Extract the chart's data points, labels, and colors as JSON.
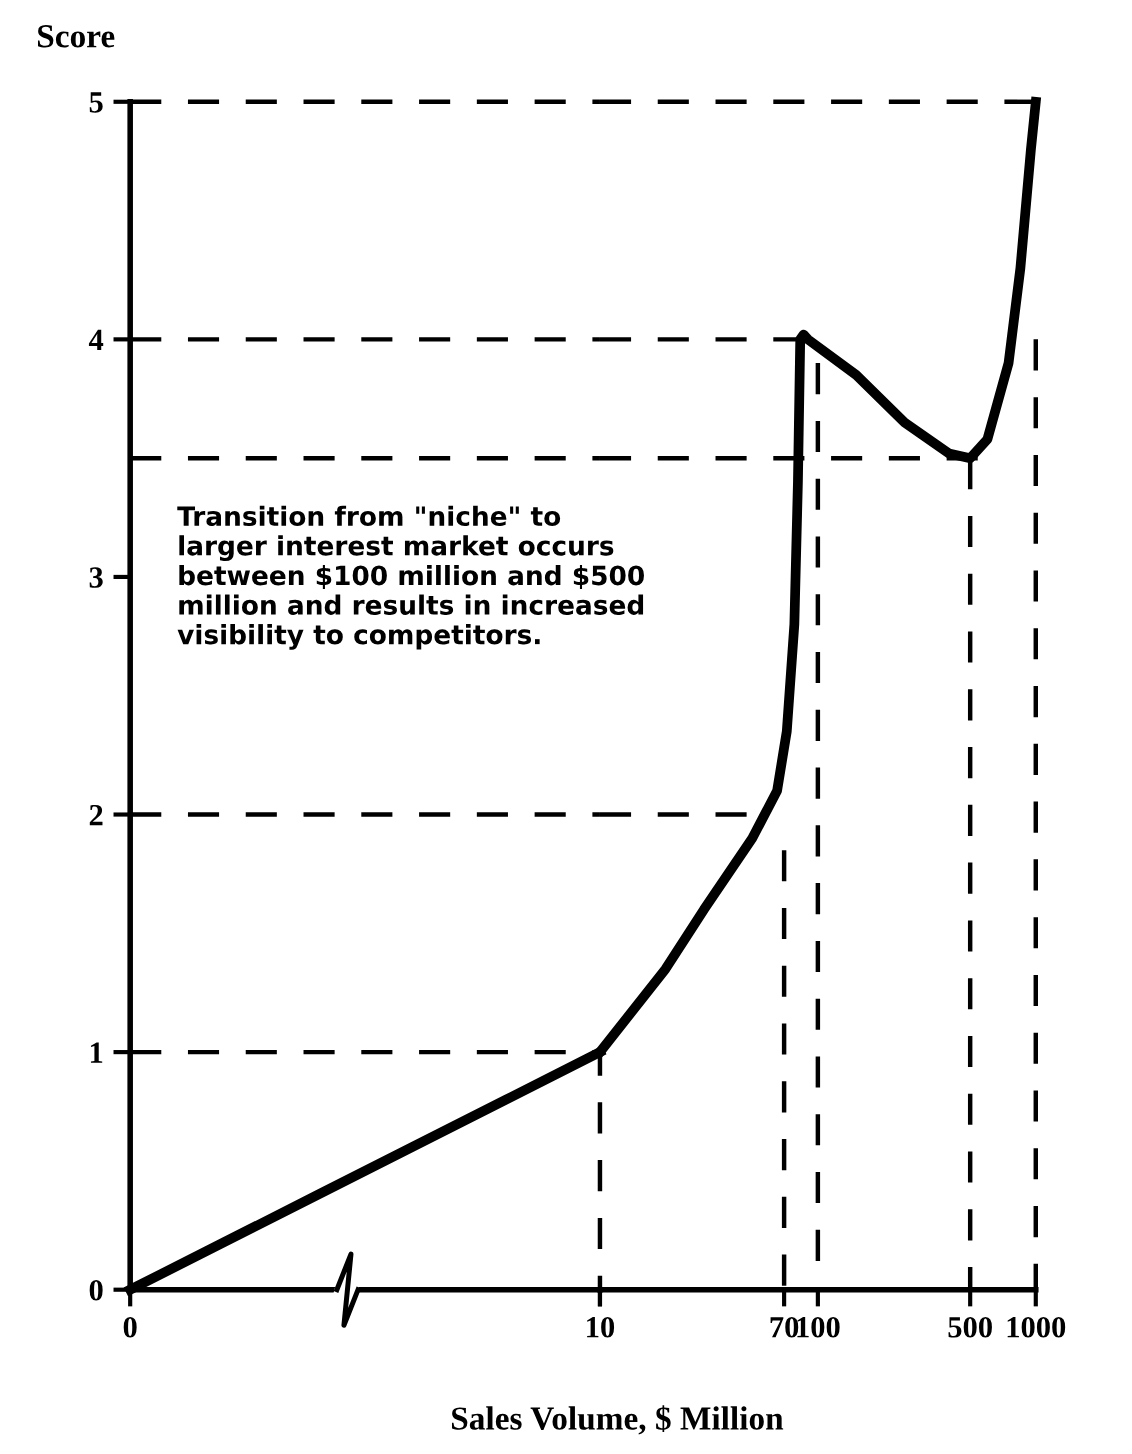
{
  "chart_data": [
    {
      "type": "line",
      "ylabel": "Score",
      "xlabel": "Sales Volume, $ Million",
      "annotations": [
        "Transition from \"niche\" to\nlarger interest market occurs\nbetween $100 million and $500\nmillion and results in increased\nvisibility to competitors."
      ],
      "xlim": [
        0,
        10
      ],
      "ylim": [
        0,
        5
      ],
      "xticks": [
        0,
        10
      ],
      "yticks": [
        0,
        1,
        2,
        3,
        4,
        5
      ],
      "grid": false,
      "legend": false,
      "marker": "none",
      "series": [
        {
          "color": "#000000",
          "line_style": "solid",
          "x": [
            0,
            2,
            4,
            6,
            8,
            10
          ],
          "values": [
            0,
            0.2,
            0.4,
            0.6,
            0.8,
            1.0
          ]
        },
        {
          "color": "#000000",
          "line_style": "dashed",
          "x": [
            0,
            10,
            10
          ],
          "values": [
            1,
            1,
            0
          ]
        },
        {
          "color": "#000000",
          "line_style": "dashed",
          "x": [
            0,
            10
          ],
          "values": [
            2,
            2
          ]
        },
        {
          "color": "#000000",
          "line_style": "dashed",
          "x": [
            0,
            10
          ],
          "values": [
            3.5,
            3.5
          ]
        },
        {
          "color": "#000000",
          "line_style": "dashed",
          "x": [
            0,
            10
          ],
          "values": [
            4,
            4
          ]
        },
        {
          "color": "#000000",
          "line_style": "dashed",
          "x": [
            0,
            10
          ],
          "values": [
            5,
            5
          ]
        }
      ]
    },
    {
      "type": "line",
      "log": "x",
      "tick_labels": "x",
      "xlim": [
        10,
        1000
      ],
      "ylim": [
        0,
        5
      ],
      "xticks": [
        {
          "value": 10,
          "label": null
        },
        70,
        100,
        500,
        1000
      ],
      "yticks": [
        0,
        1,
        2,
        3,
        4,
        5
      ],
      "grid": false,
      "legend": false,
      "marker": "none",
      "series": [
        {
          "color": "#000000",
          "line_style": "solid",
          "x": [
            10,
            20,
            30,
            50,
            65,
            72,
            78,
            81,
            83,
            86,
            90,
            150,
            250,
            400,
            500,
            600,
            750,
            850,
            950,
            1000
          ],
          "values": [
            1.0,
            1.35,
            1.6,
            1.9,
            2.1,
            2.35,
            2.8,
            3.4,
            4.0,
            4.02,
            4.0,
            3.85,
            3.65,
            3.52,
            3.5,
            3.58,
            3.9,
            4.3,
            4.8,
            5.0
          ]
        },
        {
          "color": "#000000",
          "line_style": "dashed",
          "x": [
            10,
            62
          ],
          "values": [
            2,
            2
          ]
        },
        {
          "color": "#000000",
          "line_style": "dashed",
          "x": [
            70,
            70
          ],
          "values": [
            1.85,
            0
          ]
        },
        {
          "color": "#000000",
          "line_style": "dashed",
          "x": [
            10,
            560
          ],
          "values": [
            3.5,
            3.5
          ]
        },
        {
          "color": "#000000",
          "line_style": "dashed",
          "x": [
            500,
            500
          ],
          "values": [
            3.5,
            0
          ]
        },
        {
          "color": "#000000",
          "line_style": "dashed",
          "x": [
            10,
            82
          ],
          "values": [
            4,
            4
          ]
        },
        {
          "color": "#000000",
          "line_style": "dashed",
          "x": [
            100,
            100
          ],
          "values": [
            3.9,
            0
          ]
        },
        {
          "color": "#000000",
          "line_style": "dashed",
          "x": [
            1000,
            1000
          ],
          "values": [
            4,
            0
          ]
        },
        {
          "color": "#000000",
          "line_style": "dashed",
          "x": [
            10,
            1000
          ],
          "values": [
            5,
            5
          ]
        }
      ]
    }
  ]
}
